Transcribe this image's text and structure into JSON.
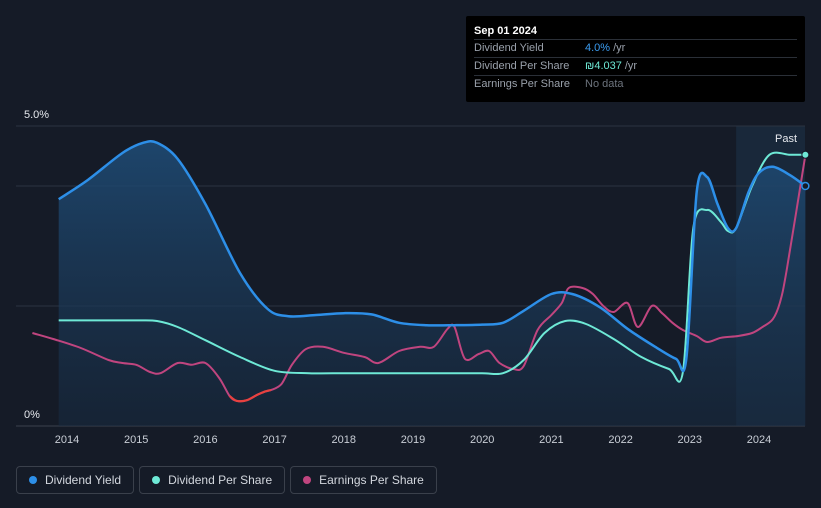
{
  "tooltip": {
    "date": "Sep 01 2024",
    "rows": [
      {
        "label": "Dividend Yield",
        "value": "4.0%",
        "unit": "/yr"
      },
      {
        "label": "Dividend Per Share",
        "value": "₪4.037",
        "unit": "/yr"
      },
      {
        "label": "Earnings Per Share",
        "value": "No data"
      }
    ]
  },
  "legend": [
    {
      "label": "Dividend Yield",
      "color": "#2d8fe8"
    },
    {
      "label": "Dividend Per Share",
      "color": "#6ee9d6"
    },
    {
      "label": "Earnings Per Share",
      "color": "#c0457f"
    }
  ],
  "chart_data": {
    "type": "line",
    "title": "",
    "xlabel": "",
    "ylabel": "",
    "ylim": [
      0,
      5.0
    ],
    "y_tick_labels": [
      "5.0%",
      "0%"
    ],
    "x_ticks": [
      2014,
      2015,
      2016,
      2017,
      2018,
      2019,
      2020,
      2021,
      2022,
      2023,
      2024
    ],
    "x_tick_labels": [
      "2014",
      "2015",
      "2016",
      "2017",
      "2018",
      "2019",
      "2020",
      "2021",
      "2022",
      "2023",
      "2024"
    ],
    "xlim": [
      2013.5,
      2024.67
    ],
    "past_region": {
      "label": "Past",
      "from": 2023.67,
      "to": 2024.67
    },
    "colors": {
      "yield": "#2d8fe8",
      "dps": "#6ee9d6",
      "eps": "#c0457f",
      "eps_negative": "#e8413f"
    },
    "series": [
      {
        "name": "Dividend Yield",
        "color": "#2d8fe8",
        "x": [
          2013.88,
          2014.3,
          2014.8,
          2015.1,
          2015.3,
          2015.6,
          2016.0,
          2016.5,
          2016.9,
          2017.2,
          2017.6,
          2018.0,
          2018.4,
          2018.8,
          2019.2,
          2019.6,
          2020.0,
          2020.3,
          2020.6,
          2021.0,
          2021.3,
          2021.7,
          2022.1,
          2022.5,
          2022.8,
          2022.95,
          2023.1,
          2023.25,
          2023.4,
          2023.55,
          2023.67,
          2023.85,
          2024.0,
          2024.2,
          2024.45,
          2024.67
        ],
        "values": [
          3.78,
          4.1,
          4.55,
          4.72,
          4.72,
          4.45,
          3.7,
          2.55,
          1.95,
          1.83,
          1.85,
          1.88,
          1.86,
          1.72,
          1.68,
          1.68,
          1.69,
          1.72,
          1.92,
          2.2,
          2.2,
          1.98,
          1.62,
          1.32,
          1.12,
          1.12,
          3.9,
          4.15,
          3.7,
          3.3,
          3.3,
          3.9,
          4.22,
          4.32,
          4.18,
          4.0
        ]
      },
      {
        "name": "Dividend Per Share",
        "color": "#6ee9d6",
        "x": [
          2013.88,
          2014.5,
          2015.0,
          2015.3,
          2015.6,
          2016.0,
          2016.5,
          2017.0,
          2017.5,
          2018.0,
          2018.5,
          2019.0,
          2019.5,
          2020.0,
          2020.3,
          2020.6,
          2020.9,
          2021.2,
          2021.5,
          2021.9,
          2022.3,
          2022.7,
          2022.9,
          2023.05,
          2023.25,
          2023.45,
          2023.55,
          2023.67,
          2023.9,
          2024.15,
          2024.45,
          2024.67
        ],
        "values": [
          1.76,
          1.76,
          1.76,
          1.75,
          1.65,
          1.43,
          1.15,
          0.92,
          0.88,
          0.88,
          0.88,
          0.88,
          0.88,
          0.88,
          0.88,
          1.1,
          1.55,
          1.75,
          1.7,
          1.45,
          1.15,
          0.95,
          0.9,
          3.3,
          3.6,
          3.4,
          3.25,
          3.3,
          4.0,
          4.52,
          4.52,
          4.52
        ]
      },
      {
        "name": "Earnings Per Share",
        "color": "#c0457f",
        "x": [
          2013.5,
          2013.8,
          2014.2,
          2014.6,
          2014.8,
          2015.0,
          2015.2,
          2015.35,
          2015.6,
          2015.8,
          2016.0,
          2016.2,
          2016.35,
          2016.45,
          2016.6,
          2016.75,
          2016.85,
          2016.95,
          2017.1,
          2017.25,
          2017.45,
          2017.7,
          2018.0,
          2018.3,
          2018.5,
          2018.8,
          2019.1,
          2019.3,
          2019.5,
          2019.6,
          2019.75,
          2019.95,
          2020.1,
          2020.25,
          2020.45,
          2020.6,
          2020.8,
          2021.0,
          2021.15,
          2021.25,
          2021.45,
          2021.6,
          2021.75,
          2021.9,
          2022.1,
          2022.25,
          2022.45,
          2022.6,
          2022.75,
          2022.9,
          2023.1,
          2023.25,
          2023.45,
          2023.7,
          2023.9,
          2024.05,
          2024.2,
          2024.3,
          2024.4,
          2024.67
        ],
        "values": [
          1.55,
          1.45,
          1.3,
          1.1,
          1.05,
          1.02,
          0.9,
          0.88,
          1.05,
          1.02,
          1.05,
          0.8,
          0.5,
          0.42,
          0.43,
          0.52,
          0.57,
          0.6,
          0.7,
          1.02,
          1.28,
          1.32,
          1.22,
          1.15,
          1.05,
          1.25,
          1.32,
          1.32,
          1.62,
          1.65,
          1.12,
          1.2,
          1.25,
          1.05,
          0.95,
          1.0,
          1.6,
          1.85,
          2.05,
          2.3,
          2.3,
          2.2,
          2.0,
          1.9,
          2.05,
          1.65,
          2.0,
          1.88,
          1.72,
          1.6,
          1.5,
          1.4,
          1.47,
          1.5,
          1.55,
          1.65,
          1.78,
          2.05,
          2.6,
          4.52
        ]
      }
    ],
    "eps_negative_range": [
      2016.25,
      2016.95
    ]
  }
}
